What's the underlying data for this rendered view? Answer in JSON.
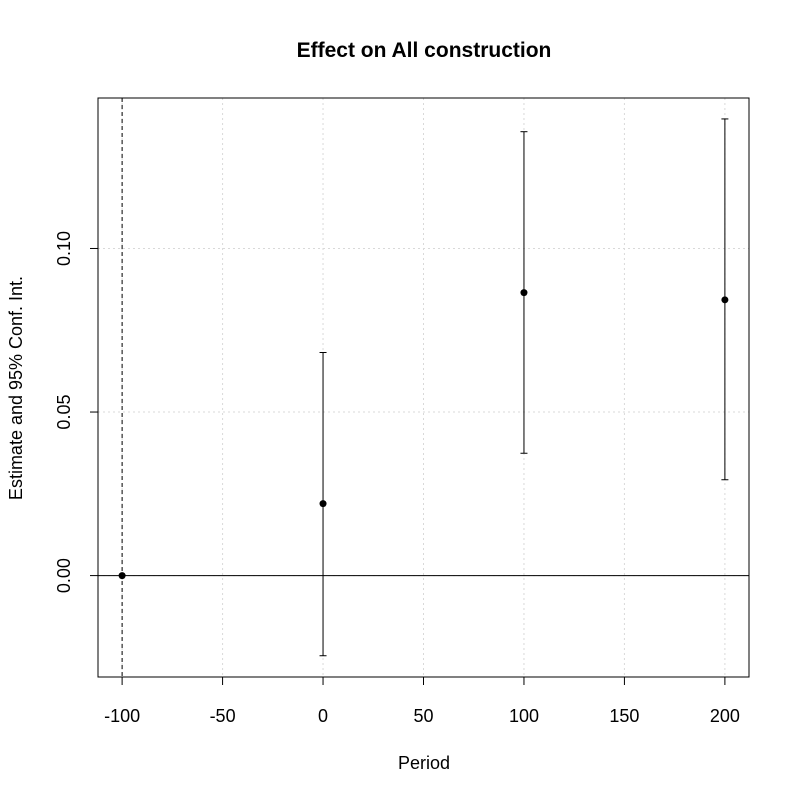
{
  "chart_data": {
    "type": "scatter",
    "title": "Effect on All construction",
    "xlabel": "Period",
    "ylabel": "Estimate and 95% Conf. Int.",
    "xlim": [
      -112,
      212
    ],
    "ylim": [
      -0.031,
      0.146
    ],
    "xticks": [
      -100,
      -50,
      0,
      50,
      100,
      150,
      200
    ],
    "xtick_labels": [
      "-100",
      "-50",
      "0",
      "50",
      "100",
      "150",
      "200"
    ],
    "yticks": [
      0.0,
      0.05,
      0.1
    ],
    "ytick_labels": [
      "0.00",
      "0.05",
      "0.10"
    ],
    "grid": true,
    "reference_vline_x": -100,
    "reference_hline_y": 0,
    "series": [
      {
        "points": [
          {
            "x": -100,
            "y": 0.0,
            "lower": null,
            "upper": null
          },
          {
            "x": 0,
            "y": 0.022,
            "lower": -0.0245,
            "upper": 0.0682
          },
          {
            "x": 100,
            "y": 0.0865,
            "lower": 0.0374,
            "upper": 0.1357
          },
          {
            "x": 200,
            "y": 0.0843,
            "lower": 0.0293,
            "upper": 0.1396
          }
        ]
      }
    ],
    "colors": {
      "points": "#000000",
      "errorbars": "#000000",
      "grid": "#d9d9d9",
      "frame": "#000000"
    }
  }
}
